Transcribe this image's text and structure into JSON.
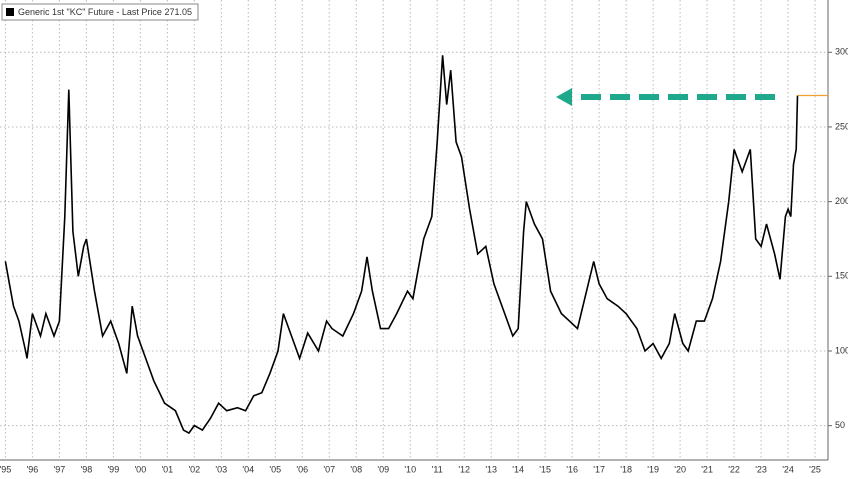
{
  "chart_data": {
    "type": "line",
    "series": [
      {
        "name": "Generic 1st \"KC\" Future - Last Price 271.05",
        "color": "#000000",
        "x": [
          1995.0,
          1995.15,
          1995.3,
          1995.5,
          1995.75,
          1995.8,
          1996.0,
          1996.3,
          1996.5,
          1996.8,
          1997.0,
          1997.2,
          1997.35,
          1997.5,
          1997.7,
          1997.9,
          1998.0,
          1998.3,
          1998.6,
          1998.9,
          1999.2,
          1999.5,
          1999.7,
          1999.9,
          2000.2,
          2000.5,
          2000.9,
          2001.3,
          2001.6,
          2001.8,
          2002.0,
          2002.3,
          2002.6,
          2002.9,
          2003.2,
          2003.6,
          2003.9,
          2004.2,
          2004.5,
          2004.8,
          2005.1,
          2005.3,
          2005.6,
          2005.9,
          2006.2,
          2006.6,
          2006.9,
          2007.1,
          2007.5,
          2007.9,
          2008.2,
          2008.4,
          2008.6,
          2008.9,
          2009.2,
          2009.5,
          2009.9,
          2010.1,
          2010.5,
          2010.8,
          2011.0,
          2011.2,
          2011.35,
          2011.5,
          2011.7,
          2011.9,
          2012.2,
          2012.5,
          2012.8,
          2013.1,
          2013.5,
          2013.8,
          2014.0,
          2014.2,
          2014.3,
          2014.6,
          2014.9,
          2015.2,
          2015.6,
          2015.9,
          2016.2,
          2016.6,
          2016.8,
          2017.0,
          2017.3,
          2017.7,
          2018.0,
          2018.4,
          2018.7,
          2019.0,
          2019.3,
          2019.6,
          2019.8,
          2020.1,
          2020.3,
          2020.6,
          2020.9,
          2021.2,
          2021.5,
          2021.8,
          2022.0,
          2022.3,
          2022.6,
          2022.8,
          2023.0,
          2023.2,
          2023.5,
          2023.7,
          2023.9,
          2024.0,
          2024.1,
          2024.2,
          2024.3,
          2024.35
        ],
        "values": [
          160,
          145,
          130,
          120,
          100,
          95,
          125,
          110,
          125,
          110,
          120,
          190,
          275,
          180,
          150,
          170,
          175,
          140,
          110,
          120,
          105,
          85,
          130,
          110,
          95,
          80,
          65,
          60,
          47,
          45,
          50,
          47,
          55,
          65,
          60,
          62,
          60,
          70,
          72,
          85,
          100,
          125,
          110,
          95,
          112,
          100,
          120,
          115,
          110,
          125,
          140,
          163,
          140,
          115,
          115,
          125,
          140,
          135,
          175,
          190,
          240,
          298,
          265,
          288,
          240,
          230,
          195,
          165,
          170,
          145,
          125,
          110,
          115,
          180,
          200,
          185,
          175,
          140,
          125,
          120,
          115,
          145,
          160,
          145,
          135,
          130,
          125,
          115,
          100,
          105,
          95,
          105,
          125,
          105,
          100,
          120,
          120,
          135,
          160,
          200,
          235,
          220,
          235,
          175,
          170,
          185,
          165,
          148,
          190,
          195,
          190,
          225,
          235,
          271.05
        ]
      }
    ],
    "xlim": [
      1994.8,
      2025.48
    ],
    "xticks": [
      {
        "value": 1995,
        "label": "'95"
      },
      {
        "value": 1996,
        "label": "'96"
      },
      {
        "value": 1997,
        "label": "'97"
      },
      {
        "value": 1998,
        "label": "'98"
      },
      {
        "value": 1999,
        "label": "'99"
      },
      {
        "value": 2000,
        "label": "'00"
      },
      {
        "value": 2001,
        "label": "'01"
      },
      {
        "value": 2002,
        "label": "'02"
      },
      {
        "value": 2003,
        "label": "'03"
      },
      {
        "value": 2004,
        "label": "'04"
      },
      {
        "value": 2005,
        "label": "'05"
      },
      {
        "value": 2006,
        "label": "'06"
      },
      {
        "value": 2007,
        "label": "'07"
      },
      {
        "value": 2008,
        "label": "'08"
      },
      {
        "value": 2009,
        "label": "'09"
      },
      {
        "value": 2010,
        "label": "'10"
      },
      {
        "value": 2011,
        "label": "'11"
      },
      {
        "value": 2012,
        "label": "'12"
      },
      {
        "value": 2013,
        "label": "'13"
      },
      {
        "value": 2014,
        "label": "'14"
      },
      {
        "value": 2015,
        "label": "'15"
      },
      {
        "value": 2016,
        "label": "'16"
      },
      {
        "value": 2017,
        "label": "'17"
      },
      {
        "value": 2018,
        "label": "'18"
      },
      {
        "value": 2019,
        "label": "'19"
      },
      {
        "value": 2020,
        "label": "'20"
      },
      {
        "value": 2021,
        "label": "'21"
      },
      {
        "value": 2022,
        "label": "'22"
      },
      {
        "value": 2023,
        "label": "'23"
      },
      {
        "value": 2024,
        "label": "'24"
      },
      {
        "value": 2025,
        "label": "'25"
      }
    ],
    "ylim": [
      27,
      335
    ],
    "yticks": [
      50,
      100,
      150,
      200,
      250,
      300
    ],
    "grid": true,
    "last_price_color": "#f0a030",
    "arrow_color": "#1fa98c"
  }
}
